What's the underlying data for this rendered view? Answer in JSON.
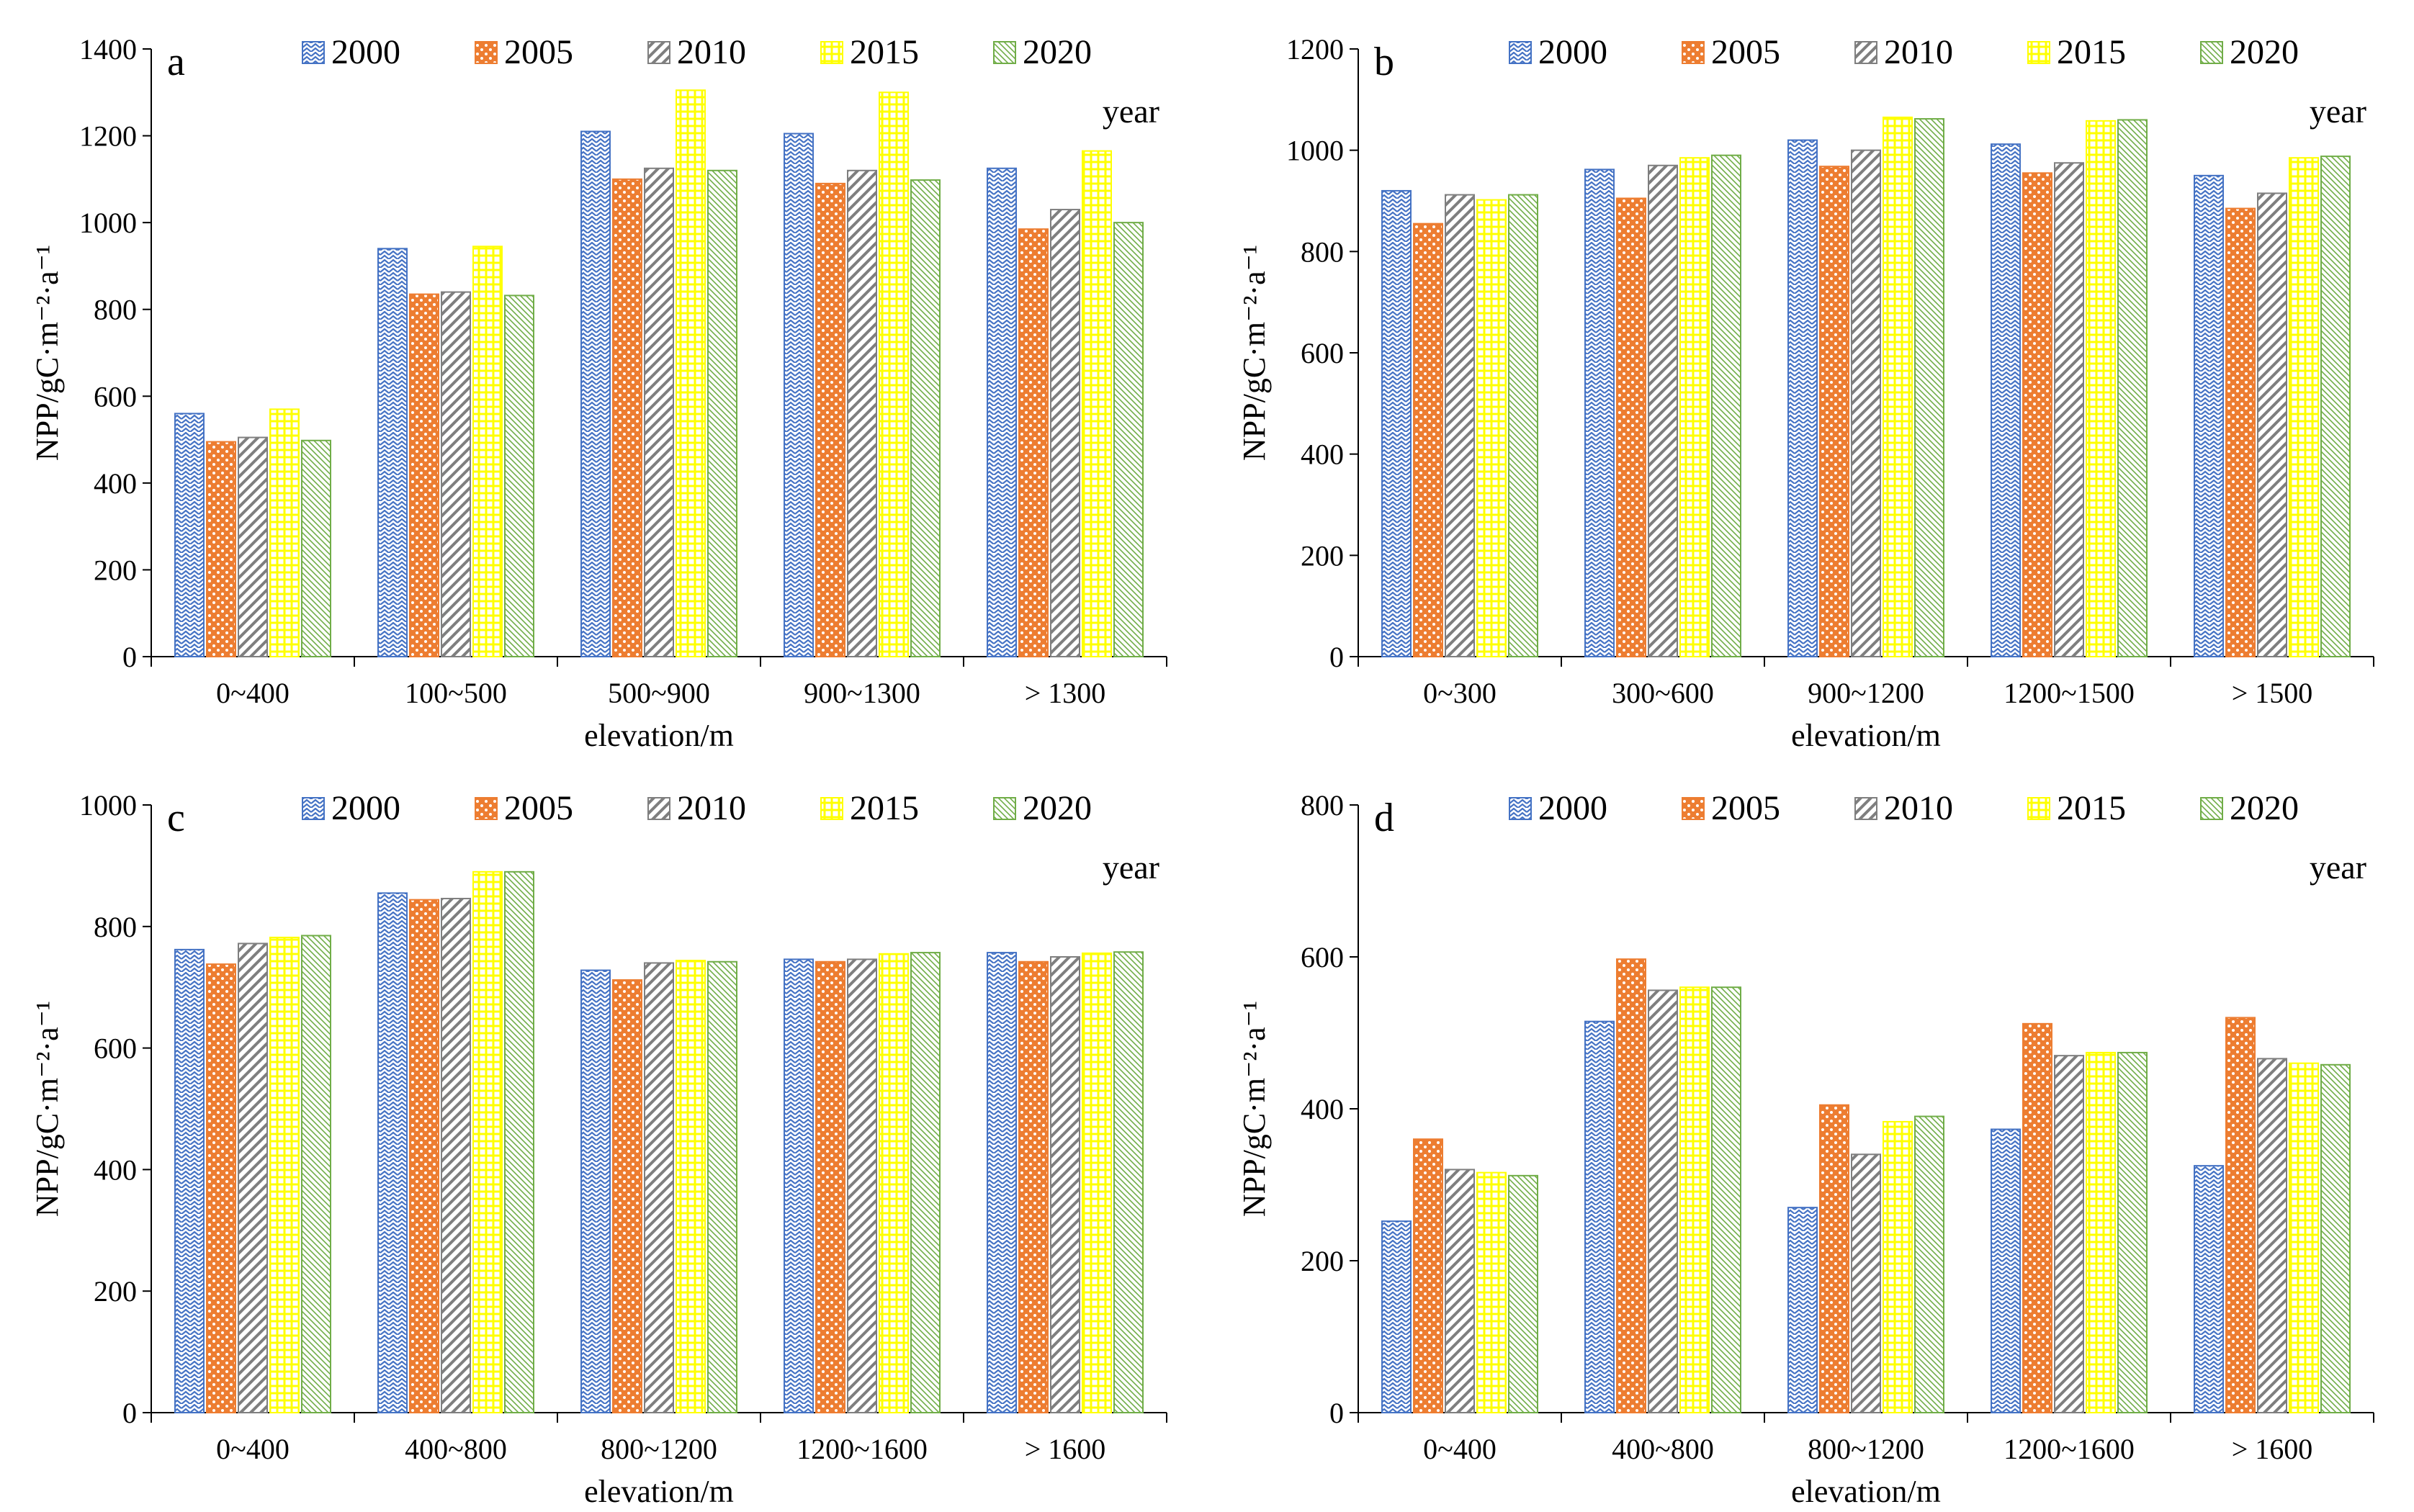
{
  "series_names": [
    "2000",
    "2005",
    "2010",
    "2015",
    "2020"
  ],
  "series_colors": [
    "#4472C4",
    "#ED7D31",
    "#7F7F7F",
    "#FFFF00",
    "#70AD47"
  ],
  "chart_data": [
    {
      "panel": "a",
      "type": "bar",
      "categories": [
        "0~400",
        "100~500",
        "500~900",
        "900~1300",
        "> 1300"
      ],
      "series": [
        {
          "name": "2000",
          "values": [
            560,
            940,
            1210,
            1205,
            1125
          ]
        },
        {
          "name": "2005",
          "values": [
            495,
            835,
            1100,
            1090,
            985
          ]
        },
        {
          "name": "2010",
          "values": [
            505,
            840,
            1125,
            1120,
            1030
          ]
        },
        {
          "name": "2015",
          "values": [
            570,
            945,
            1305,
            1300,
            1165
          ]
        },
        {
          "name": "2020",
          "values": [
            498,
            832,
            1120,
            1098,
            1000
          ]
        }
      ],
      "ylim": [
        0,
        1400
      ],
      "yticks": [
        0,
        200,
        400,
        600,
        800,
        1000,
        1200,
        1400
      ],
      "ylabel": "NPP/gC·m⁻²·a⁻¹",
      "xlabel": "elevation/m",
      "legend_unit": "year"
    },
    {
      "panel": "b",
      "type": "bar",
      "categories": [
        "0~300",
        "300~600",
        "900~1200",
        "1200~1500",
        "> 1500"
      ],
      "series": [
        {
          "name": "2000",
          "values": [
            920,
            962,
            1020,
            1012,
            950
          ]
        },
        {
          "name": "2005",
          "values": [
            855,
            905,
            968,
            955,
            885
          ]
        },
        {
          "name": "2010",
          "values": [
            912,
            970,
            1000,
            975,
            915
          ]
        },
        {
          "name": "2015",
          "values": [
            902,
            985,
            1065,
            1058,
            985
          ]
        },
        {
          "name": "2020",
          "values": [
            912,
            990,
            1062,
            1060,
            988
          ]
        }
      ],
      "ylim": [
        0,
        1200
      ],
      "yticks": [
        0,
        200,
        400,
        600,
        800,
        1000,
        1200
      ],
      "ylabel": "NPP/gC·m⁻²·a⁻¹",
      "xlabel": "elevation/m",
      "legend_unit": "year"
    },
    {
      "panel": "c",
      "type": "bar",
      "categories": [
        "0~400",
        "400~800",
        "800~1200",
        "1200~1600",
        "> 1600"
      ],
      "series": [
        {
          "name": "2000",
          "values": [
            762,
            855,
            728,
            746,
            757
          ]
        },
        {
          "name": "2005",
          "values": [
            738,
            844,
            712,
            742,
            742
          ]
        },
        {
          "name": "2010",
          "values": [
            772,
            846,
            740,
            746,
            750
          ]
        },
        {
          "name": "2015",
          "values": [
            782,
            890,
            744,
            755,
            756
          ]
        },
        {
          "name": "2020",
          "values": [
            785,
            890,
            742,
            757,
            758
          ]
        }
      ],
      "ylim": [
        0,
        1000
      ],
      "yticks": [
        0,
        200,
        400,
        600,
        800,
        1000
      ],
      "ylabel": "NPP/gC·m⁻²·a⁻¹",
      "xlabel": "elevation/m",
      "legend_unit": "year"
    },
    {
      "panel": "d",
      "type": "bar",
      "categories": [
        "0~400",
        "400~800",
        "800~1200",
        "1200~1600",
        "> 1600"
      ],
      "series": [
        {
          "name": "2000",
          "values": [
            252,
            515,
            270,
            373,
            325
          ]
        },
        {
          "name": "2005",
          "values": [
            360,
            597,
            405,
            512,
            520
          ]
        },
        {
          "name": "2010",
          "values": [
            320,
            556,
            340,
            470,
            466
          ]
        },
        {
          "name": "2015",
          "values": [
            316,
            560,
            383,
            474,
            460
          ]
        },
        {
          "name": "2020",
          "values": [
            312,
            560,
            390,
            474,
            458
          ]
        }
      ],
      "ylim": [
        0,
        800
      ],
      "yticks": [
        0,
        200,
        400,
        600,
        800
      ],
      "ylabel": "NPP/gC·m⁻²·a⁻¹",
      "xlabel": "elevation/m",
      "legend_unit": "year"
    }
  ]
}
